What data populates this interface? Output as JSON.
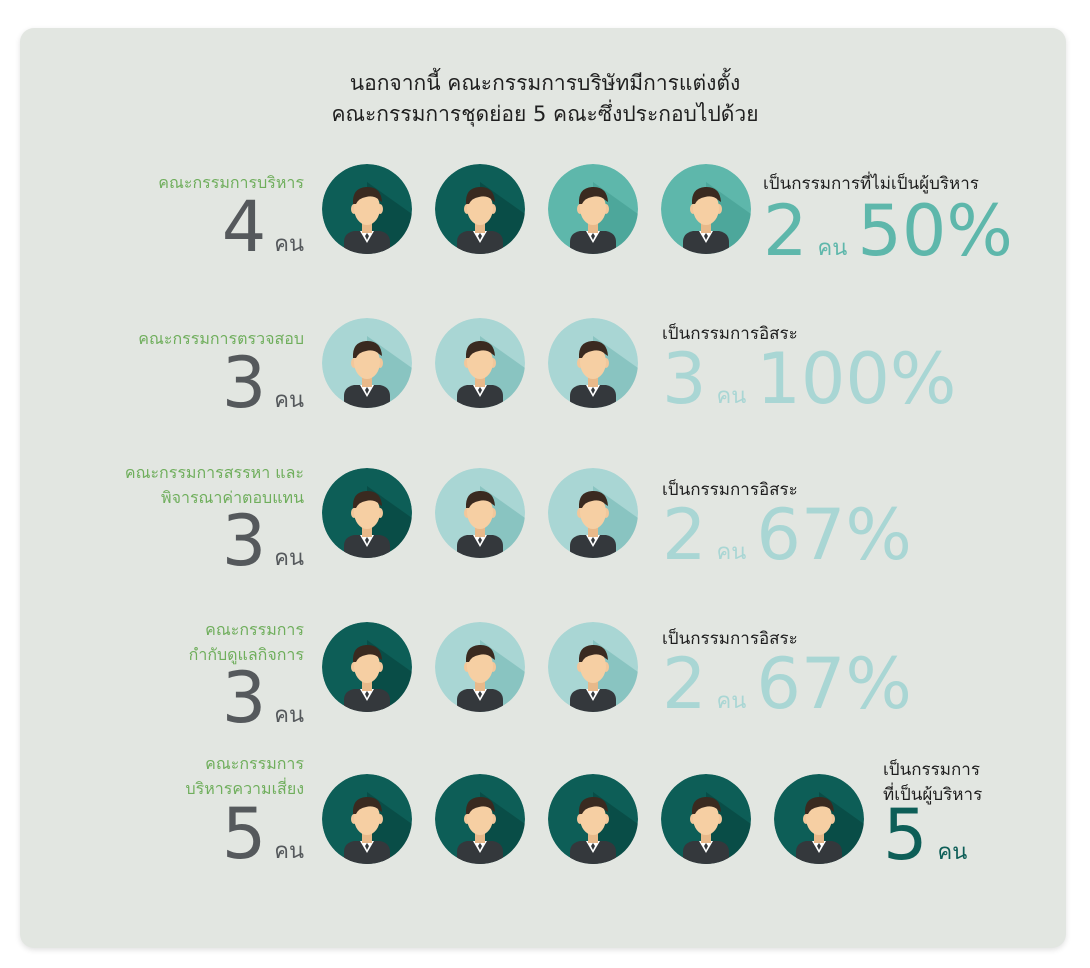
{
  "heading": {
    "line1": "นอกจากนี้ คณะกรรมการบริษัทมีการแต่งตั้ง",
    "line2": "คณะกรรมการชุดย่อย 5 คณะซึ่งประกอบไปด้วย"
  },
  "colors": {
    "dark_teal": "#0d5e57",
    "mid_teal": "#5eb7ab",
    "light_teal": "#a9d6d4",
    "label_green": "#6fae5c",
    "count_gray": "#55595c"
  },
  "committees": [
    {
      "label": "คณะกรรมการบริหาร",
      "count": "4",
      "unit": "คน",
      "avatars": [
        "dark",
        "dark",
        "mid",
        "mid"
      ],
      "note": "เป็นกรรมการที่ไม่เป็นผู้บริหาร",
      "stat_count": "2",
      "stat_unit": "คน",
      "stat_percent": "50%"
    },
    {
      "label": "คณะกรรมการตรวจสอบ",
      "count": "3",
      "unit": "คน",
      "avatars": [
        "light",
        "light",
        "light"
      ],
      "note": "เป็นกรรมการอิสระ",
      "stat_count": "3",
      "stat_unit": "คน",
      "stat_percent": "100%"
    },
    {
      "label_line1": "คณะกรรมการสรรหา และ",
      "label_line2": "พิจารณาค่าตอบแทน",
      "count": "3",
      "unit": "คน",
      "avatars": [
        "dark",
        "light",
        "light"
      ],
      "note": "เป็นกรรมการอิสระ",
      "stat_count": "2",
      "stat_unit": "คน",
      "stat_percent": "67%"
    },
    {
      "label_line1": "คณะกรรมการ",
      "label_line2": "กำกับดูแลกิจการ",
      "count": "3",
      "unit": "คน",
      "avatars": [
        "dark",
        "light",
        "light"
      ],
      "note": "เป็นกรรมการอิสระ",
      "stat_count": "2",
      "stat_unit": "คน",
      "stat_percent": "67%"
    },
    {
      "label_line1": "คณะกรรมการ",
      "label_line2": "บริหารความเสี่ยง",
      "count": "5",
      "unit": "คน",
      "avatars": [
        "dark",
        "dark",
        "dark",
        "dark",
        "dark"
      ],
      "note_line1": "เป็นกรรมการ",
      "note_line2": "ที่เป็นผู้บริหาร",
      "stat_count": "5",
      "stat_unit": "คน"
    }
  ]
}
